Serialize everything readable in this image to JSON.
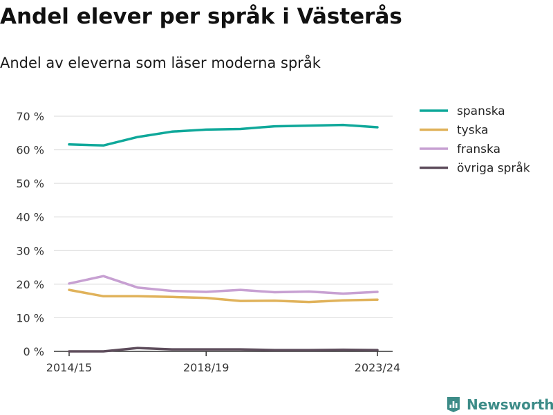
{
  "title": "Andel elever per språk i Västerås",
  "subtitle": "Andel av eleverna som läser moderna språk",
  "brand": {
    "name": "Newsworthy",
    "color": "#3d8c88",
    "icon": "bar-chart-logo-icon"
  },
  "chart_data": {
    "type": "line",
    "x_tick_labels": [
      "2014/15",
      "2018/19",
      "2023/24"
    ],
    "x": [
      "2014/15",
      "2015/16",
      "2016/17",
      "2017/18",
      "2018/19",
      "2019/20",
      "2020/21",
      "2021/22",
      "2022/23",
      "2023/24"
    ],
    "y_ticks": [
      "0 %",
      "10 %",
      "20 %",
      "30 %",
      "40 %",
      "50 %",
      "60 %",
      "70 %"
    ],
    "ylim": [
      0,
      70
    ],
    "grid": true,
    "legend_position": "right",
    "series": [
      {
        "name": "spanska",
        "color": "#0fa89a",
        "values": [
          61.6,
          61.3,
          63.8,
          65.4,
          66.0,
          66.2,
          67.0,
          67.2,
          67.4,
          66.7
        ]
      },
      {
        "name": "tyska",
        "color": "#e0b25a",
        "values": [
          18.3,
          16.4,
          16.4,
          16.2,
          15.9,
          15.0,
          15.1,
          14.7,
          15.2,
          15.4
        ]
      },
      {
        "name": "franska",
        "color": "#c7a0d2",
        "values": [
          20.2,
          22.4,
          19.0,
          18.0,
          17.7,
          18.3,
          17.6,
          17.8,
          17.2,
          17.7
        ]
      },
      {
        "name": "övriga språk",
        "color": "#5e4d5c",
        "values": [
          0.0,
          0.0,
          1.0,
          0.6,
          0.6,
          0.6,
          0.4,
          0.4,
          0.5,
          0.4
        ]
      }
    ]
  }
}
